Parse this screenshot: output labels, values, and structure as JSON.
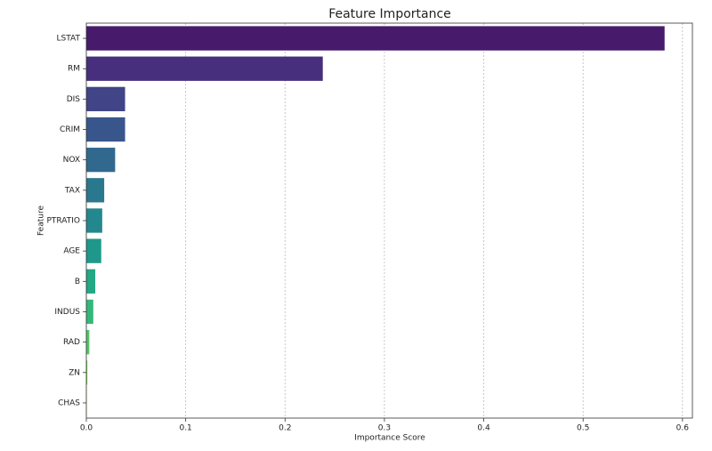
{
  "chart_data": {
    "type": "barh",
    "title": "Feature Importance",
    "x_label": "Importance Score",
    "y_label": "Feature",
    "categories": [
      "LSTAT",
      "RM",
      "DIS",
      "CRIM",
      "NOX",
      "TAX",
      "PTRATIO",
      "AGE",
      "B",
      "INDUS",
      "RAD",
      "ZN",
      "CHAS"
    ],
    "values": [
      0.582,
      0.238,
      0.039,
      0.039,
      0.029,
      0.018,
      0.016,
      0.015,
      0.009,
      0.007,
      0.003,
      0.001,
      0.0004
    ],
    "colors": [
      "#481a6c",
      "#472f7d",
      "#414487",
      "#39568c",
      "#31688e",
      "#2a788e",
      "#23888e",
      "#1f988b",
      "#22a884",
      "#35b779",
      "#54c568",
      "#7ad151",
      "#a5db36"
    ],
    "xlim": [
      0,
      0.61
    ],
    "xticks": [
      {
        "value": 0,
        "label": "0.0"
      },
      0.1,
      0.2,
      0.3,
      0.4,
      0.5,
      0.6
    ],
    "grid": true
  }
}
